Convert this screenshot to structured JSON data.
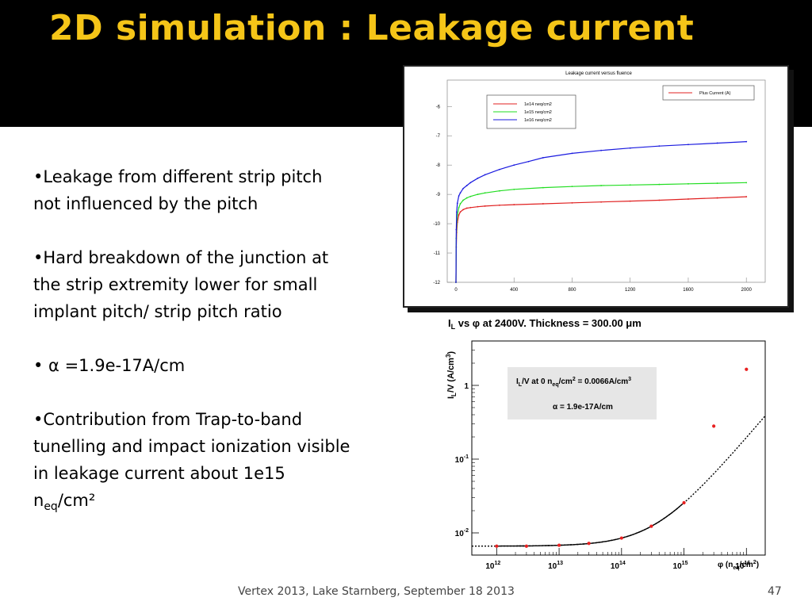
{
  "slide": {
    "title": "2D simulation : Leakage current",
    "footer": "Vertex 2013, Lake Starnberg, September 18 2013",
    "page_number": "47"
  },
  "bullets": [
    {
      "text": "•Leakage from different strip pitch not influenced by the pitch"
    },
    {
      "text": "•Hard breakdown of the junction at the strip extremity lower for small implant pitch/ strip pitch ratio"
    },
    {
      "text": "• α =1.9e-17A/cm"
    },
    {
      "pre": "•Contribution from Trap-to-band tunelling and impact ionization visible in leakage current about 1e15 n",
      "sub": "eq",
      "post": "/cm²"
    }
  ],
  "chart_data": [
    {
      "type": "line",
      "title": "Leakage current versus fluence",
      "xlim": [
        -60,
        2130
      ],
      "ylim": [
        -12,
        -5.1
      ],
      "x_ticks": [
        0,
        400,
        800,
        1200,
        1600,
        2000
      ],
      "y_ticks": [
        -6,
        -7,
        -8,
        -9,
        -10,
        -11,
        -12
      ],
      "legend_main": "Plus Current (A)",
      "colors": {
        "1e14": "#e02020",
        "1e15": "#22dd22",
        "1e16": "#1a1adf"
      },
      "series": [
        {
          "name": "1e14 neq/cm2",
          "key": "1e14",
          "x": [
            0,
            2,
            5,
            10,
            20,
            30,
            50,
            75,
            100,
            150,
            200,
            300,
            400,
            600,
            800,
            1000,
            1200,
            1400,
            1600,
            1800,
            2000
          ],
          "y": [
            -12,
            -10.8,
            -10.3,
            -9.95,
            -9.7,
            -9.6,
            -9.52,
            -9.47,
            -9.45,
            -9.42,
            -9.4,
            -9.37,
            -9.35,
            -9.32,
            -9.29,
            -9.26,
            -9.23,
            -9.2,
            -9.16,
            -9.12,
            -9.08
          ]
        },
        {
          "name": "1e15 neq/cm2",
          "key": "1e15",
          "x": [
            0,
            2,
            5,
            10,
            20,
            30,
            50,
            75,
            100,
            150,
            200,
            300,
            400,
            600,
            800,
            1000,
            1200,
            1400,
            1600,
            1800,
            2000
          ],
          "y": [
            -12,
            -10.5,
            -10.0,
            -9.7,
            -9.45,
            -9.32,
            -9.2,
            -9.12,
            -9.07,
            -9.0,
            -8.95,
            -8.88,
            -8.83,
            -8.77,
            -8.73,
            -8.7,
            -8.68,
            -8.66,
            -8.64,
            -8.62,
            -8.6
          ]
        },
        {
          "name": "1e16 neq/cm2",
          "key": "1e16",
          "x": [
            0,
            2,
            5,
            10,
            20,
            30,
            50,
            75,
            100,
            150,
            200,
            300,
            400,
            500,
            600,
            800,
            1000,
            1200,
            1400,
            1600,
            1800,
            2000
          ],
          "y": [
            -12,
            -10.2,
            -9.6,
            -9.3,
            -9.05,
            -8.95,
            -8.8,
            -8.7,
            -8.6,
            -8.45,
            -8.33,
            -8.15,
            -8.0,
            -7.88,
            -7.75,
            -7.6,
            -7.5,
            -7.42,
            -7.35,
            -7.3,
            -7.25,
            -7.2
          ]
        }
      ]
    },
    {
      "type": "scatter",
      "title": "I_L vs φ at 2400V. Thickness = 300.00 μm",
      "ylabel": "I_L/V (A/cm³)",
      "xlabel": "φ (n_eq/cm²)",
      "x_scale": "log",
      "y_scale": "log",
      "xlim": [
        400000000000.0,
        2e+16
      ],
      "ylim": [
        0.005,
        4
      ],
      "x_ticks": [
        1000000000000.0,
        10000000000000.0,
        100000000000000.0,
        1000000000000000.0,
        1e+16
      ],
      "x_tick_labels": [
        "12",
        "13",
        "14",
        "15",
        "16"
      ],
      "y_ticks": [
        0.01,
        0.1,
        1
      ],
      "y_tick_labels": [
        {
          "base": "10",
          "exp": "-2"
        },
        {
          "base": "10",
          "exp": "-1"
        },
        {
          "base": "1",
          "exp": ""
        }
      ],
      "annotation_line1": {
        "a": "I",
        "b": "L",
        "c": "/V at 0 n",
        "d": "eq",
        "e": "/cm",
        "f": "2",
        "g": " = 0.0066A/cm",
        "h": "3"
      },
      "annotation_line2": "α = 1.9e-17A/cm",
      "points": [
        {
          "x": 1000000000000.0,
          "y": 0.0066
        },
        {
          "x": 3000000000000.0,
          "y": 0.0066
        },
        {
          "x": 10000000000000.0,
          "y": 0.0068
        },
        {
          "x": 30000000000000.0,
          "y": 0.0072
        },
        {
          "x": 100000000000000.0,
          "y": 0.0085
        },
        {
          "x": 300000000000000.0,
          "y": 0.0123
        },
        {
          "x": 1000000000000000.0,
          "y": 0.0256
        },
        {
          "x": 3000000000000000.0,
          "y": 0.28
        },
        {
          "x": 1e+16,
          "y": 1.65
        }
      ],
      "fit": {
        "intercept": 0.0066,
        "alpha_per_cm": 1.9e-17
      },
      "fit_solid_xmax": 1000000000000000.0
    }
  ]
}
